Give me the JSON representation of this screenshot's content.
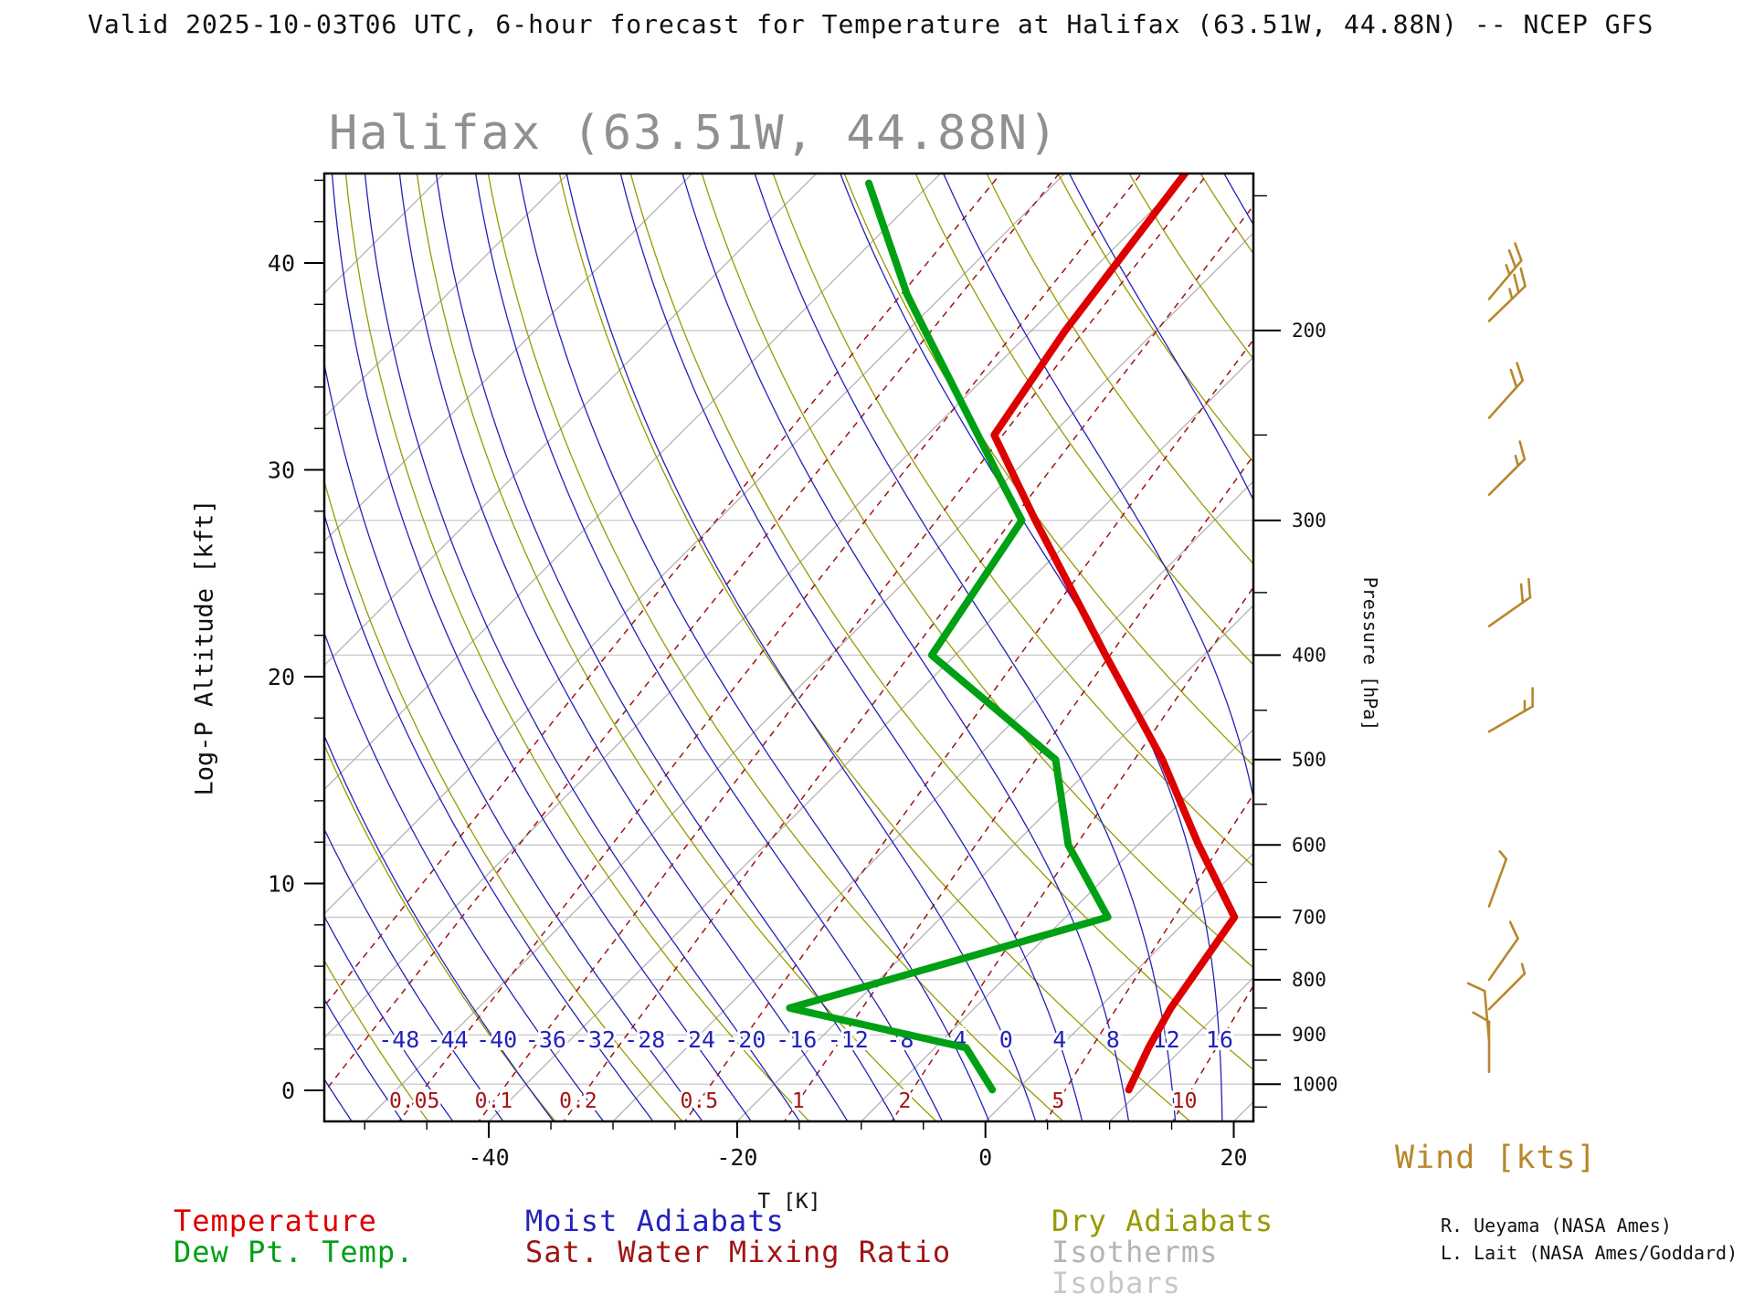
{
  "header": {
    "title": "Valid 2025-10-03T06 UTC, 6-hour forecast for Temperature at Halifax (63.51W, 44.88N) -- NCEP GFS"
  },
  "chart": {
    "title": "Halifax (63.51W, 44.88N)",
    "y_axis_label": "Log-P Altitude [kft]",
    "x_axis_label": "T [K]",
    "pressure_axis_label": "Pressure [hPa]"
  },
  "legend": {
    "temperature": "Temperature",
    "dew_point": "Dew Pt. Temp.",
    "moist_adiabats": "Moist Adiabats",
    "sat_mixing_ratio": "Sat. Water Mixing Ratio",
    "dry_adiabats": "Dry Adiabats",
    "isotherms": "Isotherms",
    "isobars": "Isobars"
  },
  "wind": {
    "label": "Wind [kts]",
    "barbs": [
      {
        "p": 187,
        "speed_kts": 25,
        "dir_deg_screen": 50
      },
      {
        "p": 196,
        "speed_kts": 25,
        "dir_deg_screen": 44
      },
      {
        "p": 241,
        "speed_kts": 20,
        "dir_deg_screen": 48
      },
      {
        "p": 284,
        "speed_kts": 15,
        "dir_deg_screen": 45
      },
      {
        "p": 376,
        "speed_kts": 20,
        "dir_deg_screen": 35
      },
      {
        "p": 471,
        "speed_kts": 15,
        "dir_deg_screen": 30
      },
      {
        "p": 684,
        "speed_kts": 5,
        "dir_deg_screen": 70
      },
      {
        "p": 800,
        "speed_kts": 10,
        "dir_deg_screen": 55
      },
      {
        "p": 852,
        "speed_kts": 5,
        "dir_deg_screen": 45
      },
      {
        "p": 912,
        "speed_kts": 10,
        "dir_deg_screen": 95
      },
      {
        "p": 974,
        "speed_kts": 10,
        "dir_deg_screen": 90
      }
    ]
  },
  "credits": {
    "line1": "R. Ueyama (NASA Ames)",
    "line2": "L. Lait (NASA Ames/Goddard)"
  },
  "colors": {
    "temperature": "#dd0000",
    "dew_point": "#00a014",
    "moist_adiabat": "#2222bb",
    "mixing_ratio": "#a01414",
    "dry_adiabat": "#999900",
    "isotherm": "#b4b4b4",
    "isobar": "#c8c8c8",
    "wind": "#b8872d",
    "frame": "#000000"
  },
  "chart_data": {
    "type": "line",
    "diagram": "skew-T log-P sounding",
    "title": "Halifax (63.51W, 44.88N)",
    "x_axis": {
      "label": "T [K]",
      "ticks": [
        -40,
        -20,
        0,
        20
      ],
      "minor_step": 5,
      "min": -50,
      "max": 20
    },
    "y_axis_left": {
      "label": "Log-P Altitude [kft]",
      "ticks": [
        0,
        10,
        20,
        30,
        40
      ],
      "minor_step": 2,
      "max": 44
    },
    "y_axis_right": {
      "label": "Pressure [hPa]",
      "ticks": [
        200,
        300,
        400,
        500,
        600,
        700,
        800,
        900,
        1000
      ],
      "minor_step": 50,
      "min": 150,
      "max": 1050
    },
    "temperature_profile": {
      "name": "Temperature",
      "units": {
        "p": "hPa",
        "T": "degC"
      },
      "points": [
        [
          1012,
          9.0
        ],
        [
          925,
          7.2
        ],
        [
          850,
          5.8
        ],
        [
          700,
          3.6
        ],
        [
          600,
          -5.1
        ],
        [
          500,
          -14.9
        ],
        [
          400,
          -27.9
        ],
        [
          300,
          -44.4
        ],
        [
          250,
          -54.6
        ],
        [
          200,
          -57.3
        ],
        [
          140,
          -60.5
        ]
      ]
    },
    "dewpoint_profile": {
      "name": "Dew Pt. Temp.",
      "units": {
        "p": "hPa",
        "T": "degC"
      },
      "points": [
        [
          1012,
          -2.0
        ],
        [
          925,
          -7.5
        ],
        [
          850,
          -24.9
        ],
        [
          700,
          -6.6
        ],
        [
          600,
          -15.6
        ],
        [
          500,
          -23.5
        ],
        [
          400,
          -41.9
        ],
        [
          300,
          -45.5
        ],
        [
          275,
          -50.5
        ],
        [
          200,
          -68.6
        ],
        [
          185,
          -73.0
        ],
        [
          146,
          -85.0
        ]
      ]
    },
    "isotherms": {
      "min": -130,
      "max": 40,
      "step": 10
    },
    "dry_adiabats": {
      "min": -50,
      "max": 150,
      "step": 10
    },
    "moist_adiabats": {
      "min": -56,
      "max": 32,
      "step": 4
    },
    "moist_adiabat_labels": [
      -48,
      -44,
      -40,
      -36,
      -32,
      -28,
      -24,
      -20,
      -16,
      -12,
      -8,
      -4,
      0,
      4,
      8,
      12,
      16
    ],
    "mixing_ratio_lines": [
      0.01,
      0.02,
      0.05,
      0.1,
      0.2,
      0.5,
      1,
      2,
      5,
      10
    ],
    "mixing_ratio_labels": [
      0.05,
      0.1,
      0.2,
      0.5,
      1,
      2,
      5,
      10
    ]
  }
}
